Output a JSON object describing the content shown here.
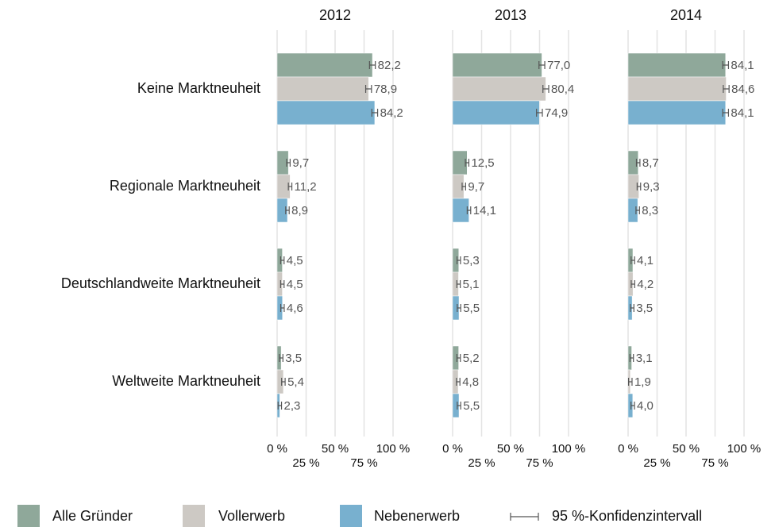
{
  "chart_data": {
    "type": "bar",
    "orientation": "horizontal",
    "categories": [
      "Keine Marktneuheit",
      "Regionale Marktneuheit",
      "Deutschlandweite Marktneuheit",
      "Weltweite Marktneuheit"
    ],
    "series": [
      {
        "name": "Alle Gründer",
        "color": "#8fa89a"
      },
      {
        "name": "Vollerwerb",
        "color": "#cdc9c4"
      },
      {
        "name": "Nebenerwerb",
        "color": "#78b0cf"
      }
    ],
    "error_label": "95 %-Konfidenzintervall",
    "xlim": [
      0,
      100
    ],
    "xticks": [
      {
        "value": 0,
        "label": "0 %"
      },
      {
        "value": 25,
        "label": "25 %"
      },
      {
        "value": 50,
        "label": "50 %"
      },
      {
        "value": 75,
        "label": "75 %"
      },
      {
        "value": 100,
        "label": "100 %"
      }
    ],
    "grid": true,
    "panels": [
      {
        "title": "2012",
        "series": [
          {
            "values": [
              82.2,
              9.7,
              4.5,
              3.5
            ],
            "value_labels": [
              "82,2",
              "9,7",
              "4,5",
              "3,5"
            ],
            "errors": [
              2.5,
              1.5,
              1.5,
              1.5
            ]
          },
          {
            "values": [
              78.9,
              11.2,
              4.5,
              5.4
            ],
            "value_labels": [
              "78,9",
              "11,2",
              "4,5",
              "5,4"
            ],
            "errors": [
              2.5,
              1.5,
              1.5,
              1.5
            ]
          },
          {
            "values": [
              84.2,
              8.9,
              4.6,
              2.3
            ],
            "value_labels": [
              "84,2",
              "8,9",
              "4,6",
              "2,3"
            ],
            "errors": [
              2.5,
              1.5,
              1.5,
              1.5
            ]
          }
        ]
      },
      {
        "title": "2013",
        "series": [
          {
            "values": [
              77,
              12.5,
              5.3,
              5.2
            ],
            "value_labels": [
              "77,0",
              "12,5",
              "5,3",
              "5,2"
            ],
            "errors": [
              2.5,
              1.5,
              1.5,
              1.5
            ]
          },
          {
            "values": [
              80.4,
              9.7,
              5.1,
              4.8
            ],
            "value_labels": [
              "80,4",
              "9,7",
              "5,1",
              "4,8"
            ],
            "errors": [
              2.5,
              1.5,
              1.5,
              1.5
            ]
          },
          {
            "values": [
              74.9,
              14.1,
              5.5,
              5.5
            ],
            "value_labels": [
              "74,9",
              "14,1",
              "5,5",
              "5,5"
            ],
            "errors": [
              2.5,
              1.5,
              1.5,
              1.5
            ]
          }
        ]
      },
      {
        "title": "2014",
        "series": [
          {
            "values": [
              84.1,
              8.7,
              4.1,
              3.1
            ],
            "value_labels": [
              "84,1",
              "8,7",
              "4,1",
              "3,1"
            ],
            "errors": [
              2.5,
              1.5,
              1.5,
              1.5
            ]
          },
          {
            "values": [
              84.6,
              9.3,
              4.2,
              1.9
            ],
            "value_labels": [
              "84,6",
              "9,3",
              "4,2",
              "1,9"
            ],
            "errors": [
              2.5,
              1.5,
              1.5,
              1.5
            ]
          },
          {
            "values": [
              84.1,
              8.3,
              3.5,
              4
            ],
            "value_labels": [
              "84,1",
              "8,3",
              "3,5",
              "4,0"
            ],
            "errors": [
              2.5,
              1.5,
              1.5,
              1.5
            ]
          }
        ]
      }
    ]
  }
}
